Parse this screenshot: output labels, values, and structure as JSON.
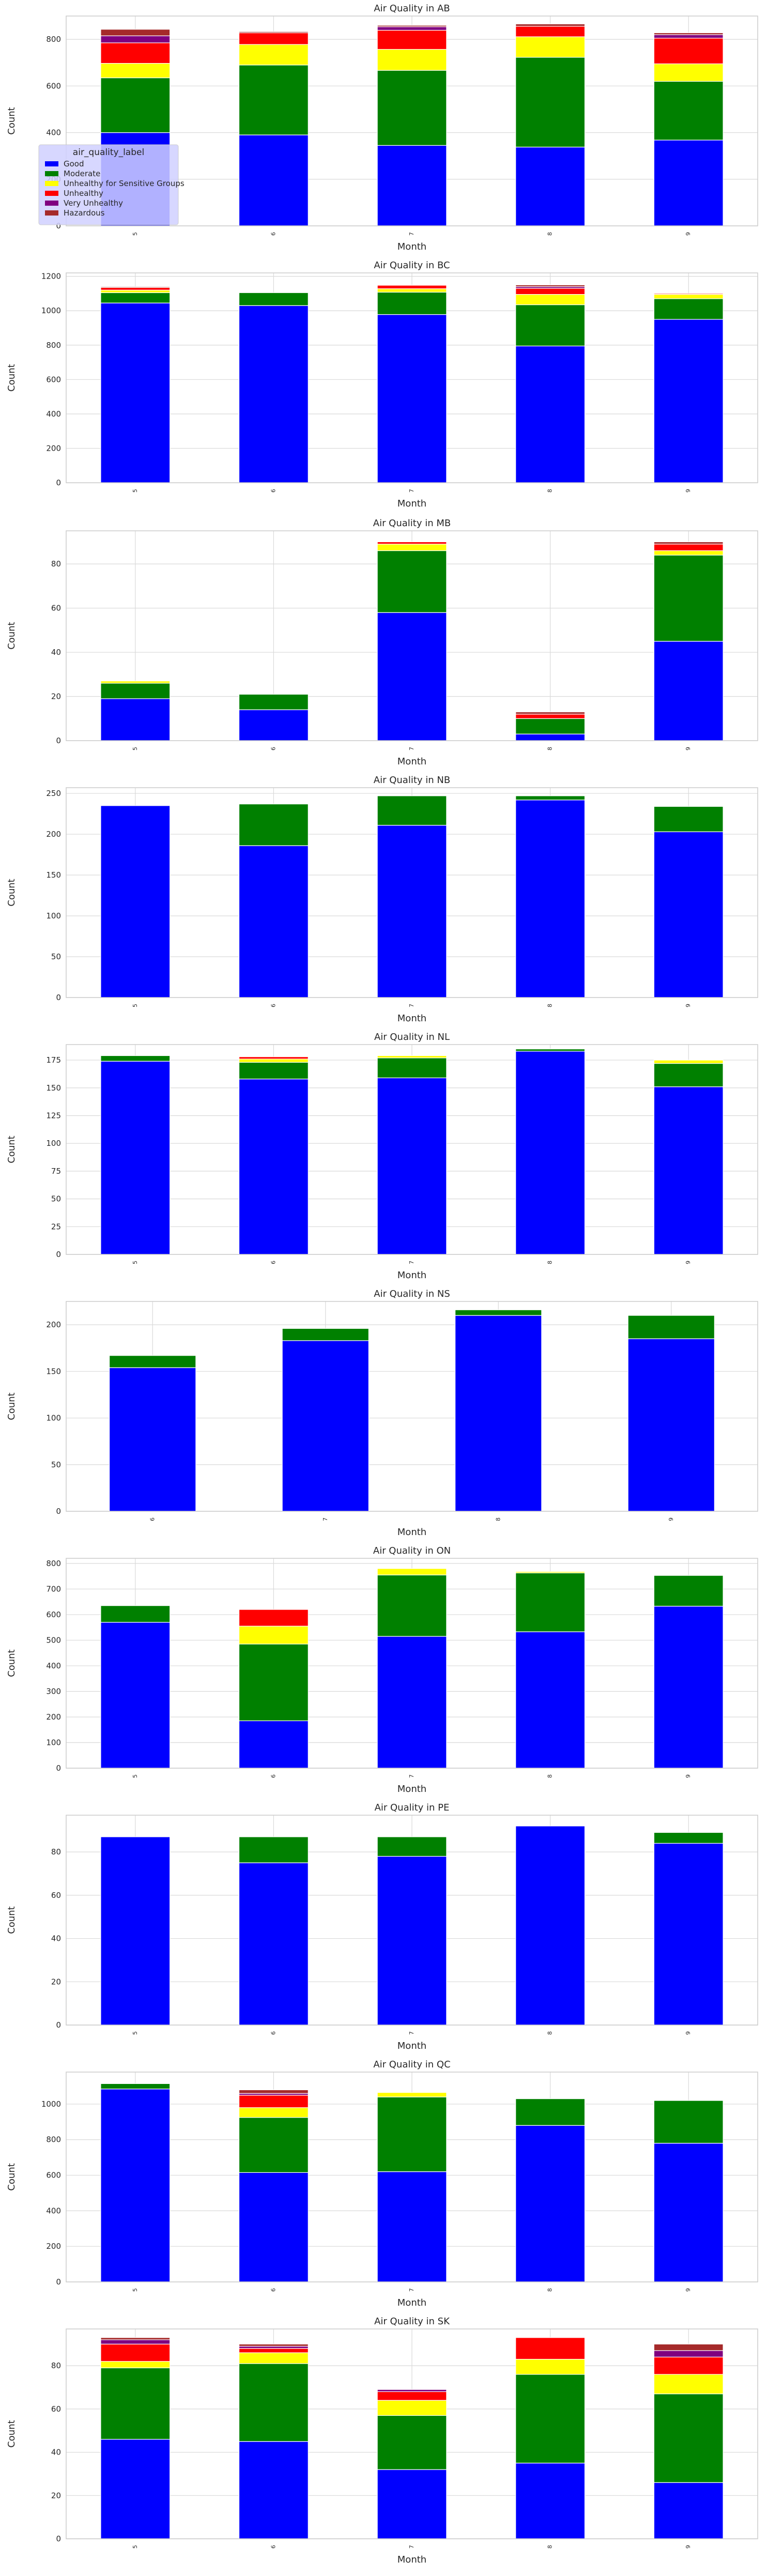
{
  "chart_data": [
    {
      "type": "bar",
      "stacked": true,
      "title": "Air Quality in AB",
      "xlabel": "Month",
      "ylabel": "Count",
      "categories": [
        "5",
        "6",
        "7",
        "8",
        "9"
      ],
      "ylim": [
        0,
        900
      ],
      "yticks": [
        0,
        200,
        400,
        600,
        800
      ],
      "grid": true,
      "legend": {
        "title": "air_quality_label",
        "placement": "lower-left",
        "entries": [
          "Good",
          "Moderate",
          "Unhealthy for Sensitive Groups",
          "Unhealthy",
          "Very Unhealthy",
          "Hazardous"
        ]
      },
      "series": [
        {
          "name": "Good",
          "values": [
            400,
            390,
            345,
            338,
            368
          ]
        },
        {
          "name": "Moderate",
          "values": [
            235,
            300,
            322,
            385,
            252
          ]
        },
        {
          "name": "Unhealthy for Sensitive Groups",
          "values": [
            62,
            88,
            90,
            88,
            75
          ]
        },
        {
          "name": "Unhealthy",
          "values": [
            88,
            50,
            82,
            45,
            110
          ]
        },
        {
          "name": "Very Unhealthy",
          "values": [
            30,
            0,
            15,
            0,
            15
          ]
        },
        {
          "name": "Hazardous",
          "values": [
            28,
            5,
            6,
            10,
            8
          ]
        }
      ]
    },
    {
      "type": "bar",
      "stacked": true,
      "title": "Air Quality in BC",
      "xlabel": "Month",
      "ylabel": "Count",
      "categories": [
        "5",
        "6",
        "7",
        "8",
        "9"
      ],
      "ylim": [
        0,
        1220
      ],
      "yticks": [
        0,
        200,
        400,
        600,
        800,
        1000,
        1200
      ],
      "grid": true,
      "series": [
        {
          "name": "Good",
          "values": [
            1045,
            1030,
            978,
            795,
            950
          ]
        },
        {
          "name": "Moderate",
          "values": [
            60,
            75,
            130,
            240,
            120
          ]
        },
        {
          "name": "Unhealthy for Sensitive Groups",
          "values": [
            15,
            0,
            20,
            60,
            25
          ]
        },
        {
          "name": "Unhealthy",
          "values": [
            15,
            0,
            20,
            35,
            5
          ]
        },
        {
          "name": "Very Unhealthy",
          "values": [
            0,
            0,
            0,
            10,
            0
          ]
        },
        {
          "name": "Hazardous",
          "values": [
            5,
            0,
            0,
            10,
            0
          ]
        }
      ]
    },
    {
      "type": "bar",
      "stacked": true,
      "title": "Air Quality in MB",
      "xlabel": "Month",
      "ylabel": "Count",
      "categories": [
        "5",
        "6",
        "7",
        "8",
        "9"
      ],
      "ylim": [
        0,
        95
      ],
      "yticks": [
        0,
        20,
        40,
        60,
        80
      ],
      "grid": true,
      "series": [
        {
          "name": "Good",
          "values": [
            19,
            14,
            58,
            3,
            45
          ]
        },
        {
          "name": "Moderate",
          "values": [
            7,
            7,
            28,
            7,
            39
          ]
        },
        {
          "name": "Unhealthy for Sensitive Groups",
          "values": [
            1,
            0,
            3,
            0,
            2
          ]
        },
        {
          "name": "Unhealthy",
          "values": [
            0,
            0,
            1,
            2,
            3
          ]
        },
        {
          "name": "Very Unhealthy",
          "values": [
            0,
            0,
            0,
            0,
            0
          ]
        },
        {
          "name": "Hazardous",
          "values": [
            0,
            0,
            0,
            1,
            1
          ]
        }
      ]
    },
    {
      "type": "bar",
      "stacked": true,
      "title": "Air Quality in NB",
      "xlabel": "Month",
      "ylabel": "Count",
      "categories": [
        "5",
        "6",
        "7",
        "8",
        "9"
      ],
      "ylim": [
        0,
        257
      ],
      "yticks": [
        0,
        50,
        100,
        150,
        200,
        250
      ],
      "grid": true,
      "series": [
        {
          "name": "Good",
          "values": [
            235,
            186,
            211,
            242,
            203
          ]
        },
        {
          "name": "Moderate",
          "values": [
            0,
            51,
            36,
            5,
            31
          ]
        }
      ]
    },
    {
      "type": "bar",
      "stacked": true,
      "title": "Air Quality in NL",
      "xlabel": "Month",
      "ylabel": "Count",
      "categories": [
        "5",
        "6",
        "7",
        "8",
        "9"
      ],
      "ylim": [
        0,
        189
      ],
      "yticks": [
        0,
        25,
        50,
        75,
        100,
        125,
        150,
        175
      ],
      "grid": true,
      "series": [
        {
          "name": "Good",
          "values": [
            174,
            158,
            159,
            183,
            151
          ]
        },
        {
          "name": "Moderate",
          "values": [
            5,
            15,
            18,
            2,
            21
          ]
        },
        {
          "name": "Unhealthy for Sensitive Groups",
          "values": [
            0,
            3,
            2,
            0,
            3
          ]
        },
        {
          "name": "Unhealthy",
          "values": [
            0,
            2,
            0,
            0,
            0
          ]
        }
      ]
    },
    {
      "type": "bar",
      "stacked": true,
      "title": "Air Quality in NS",
      "xlabel": "Month",
      "ylabel": "Count",
      "categories": [
        "6",
        "7",
        "8",
        "9"
      ],
      "ylim": [
        0,
        225
      ],
      "yticks": [
        0,
        50,
        100,
        150,
        200
      ],
      "grid": true,
      "series": [
        {
          "name": "Good",
          "values": [
            154,
            183,
            210,
            185
          ]
        },
        {
          "name": "Moderate",
          "values": [
            13,
            13,
            6,
            25
          ]
        }
      ]
    },
    {
      "type": "bar",
      "stacked": true,
      "title": "Air Quality in ON",
      "xlabel": "Month",
      "ylabel": "Count",
      "categories": [
        "5",
        "6",
        "7",
        "8",
        "9"
      ],
      "ylim": [
        0,
        820
      ],
      "yticks": [
        0,
        100,
        200,
        300,
        400,
        500,
        600,
        700,
        800
      ],
      "grid": true,
      "series": [
        {
          "name": "Good",
          "values": [
            570,
            185,
            515,
            533,
            633
          ]
        },
        {
          "name": "Moderate",
          "values": [
            65,
            300,
            240,
            230,
            120
          ]
        },
        {
          "name": "Unhealthy for Sensitive Groups",
          "values": [
            0,
            70,
            25,
            5,
            0
          ]
        },
        {
          "name": "Unhealthy",
          "values": [
            0,
            65,
            0,
            0,
            0
          ]
        }
      ]
    },
    {
      "type": "bar",
      "stacked": true,
      "title": "Air Quality in PE",
      "xlabel": "Month",
      "ylabel": "Count",
      "categories": [
        "5",
        "6",
        "7",
        "8",
        "9"
      ],
      "ylim": [
        0,
        97
      ],
      "yticks": [
        0,
        20,
        40,
        60,
        80
      ],
      "grid": true,
      "series": [
        {
          "name": "Good",
          "values": [
            87,
            75,
            78,
            92,
            84
          ]
        },
        {
          "name": "Moderate",
          "values": [
            0,
            12,
            9,
            0,
            5
          ]
        }
      ]
    },
    {
      "type": "bar",
      "stacked": true,
      "title": "Air Quality in QC",
      "xlabel": "Month",
      "ylabel": "Count",
      "categories": [
        "5",
        "6",
        "7",
        "8",
        "9"
      ],
      "ylim": [
        0,
        1180
      ],
      "yticks": [
        0,
        200,
        400,
        600,
        800,
        1000
      ],
      "grid": true,
      "series": [
        {
          "name": "Good",
          "values": [
            1085,
            615,
            620,
            880,
            780
          ]
        },
        {
          "name": "Moderate",
          "values": [
            30,
            310,
            420,
            150,
            240
          ]
        },
        {
          "name": "Unhealthy for Sensitive Groups",
          "values": [
            0,
            55,
            25,
            0,
            0
          ]
        },
        {
          "name": "Unhealthy",
          "values": [
            0,
            70,
            0,
            0,
            0
          ]
        },
        {
          "name": "Very Unhealthy",
          "values": [
            0,
            10,
            0,
            0,
            0
          ]
        },
        {
          "name": "Hazardous",
          "values": [
            0,
            20,
            0,
            0,
            0
          ]
        }
      ]
    },
    {
      "type": "bar",
      "stacked": true,
      "title": "Air Quality in SK",
      "xlabel": "Month",
      "ylabel": "Count",
      "categories": [
        "5",
        "6",
        "7",
        "8",
        "9"
      ],
      "ylim": [
        0,
        97
      ],
      "yticks": [
        0,
        20,
        40,
        60,
        80
      ],
      "grid": true,
      "series": [
        {
          "name": "Good",
          "values": [
            46,
            45,
            32,
            35,
            26
          ]
        },
        {
          "name": "Moderate",
          "values": [
            33,
            36,
            25,
            41,
            41
          ]
        },
        {
          "name": "Unhealthy for Sensitive Groups",
          "values": [
            3,
            5,
            7,
            7,
            9
          ]
        },
        {
          "name": "Unhealthy",
          "values": [
            8,
            2,
            4,
            10,
            8
          ]
        },
        {
          "name": "Very Unhealthy",
          "values": [
            2,
            1,
            1,
            0,
            3
          ]
        },
        {
          "name": "Hazardous",
          "values": [
            1,
            1,
            0,
            0,
            3
          ]
        }
      ]
    }
  ],
  "colors": {
    "Good": "#0000ff",
    "Moderate": "#008000",
    "Unhealthy for Sensitive Groups": "#ffff00",
    "Unhealthy": "#ff0000",
    "Very Unhealthy": "#800080",
    "Hazardous": "#a52a2a",
    "grid": "#d9d9d9",
    "spine": "#cccccc",
    "legend_bg": "#d0d0ff"
  }
}
